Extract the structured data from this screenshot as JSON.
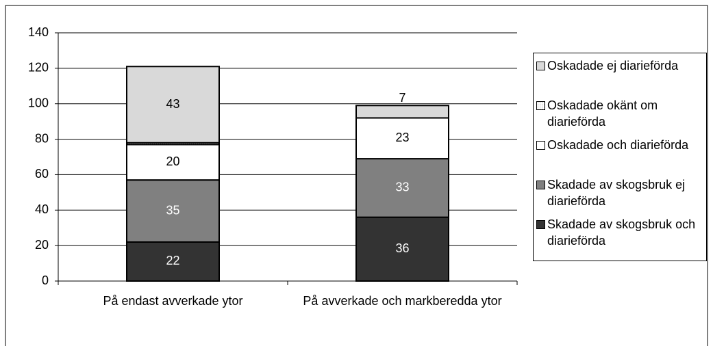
{
  "chart_data": {
    "type": "bar",
    "stacked": true,
    "categories": [
      "På endast avverkade ytor",
      "På avverkade och markberedda ytor"
    ],
    "series": [
      {
        "name": "Skadade av skogsbruk och diarieförda",
        "color": "#333333",
        "values": [
          22,
          36
        ]
      },
      {
        "name": "Skadade av skogsbruk ej diarieförda",
        "color": "#808080",
        "values": [
          35,
          33
        ]
      },
      {
        "name": "Oskadade och diarieförda",
        "color": "#ffffff",
        "values": [
          20,
          23
        ]
      },
      {
        "name": "Oskadade okänt om diarieförda",
        "color": "#e6e6e6",
        "values": [
          1,
          0
        ],
        "value_labels": [
          null,
          null
        ]
      },
      {
        "name": "Oskadade ej diarieförda",
        "color": "#d9d9d9",
        "values": [
          43,
          7
        ]
      }
    ],
    "ylim": [
      0,
      140
    ],
    "yticks": [
      0,
      20,
      40,
      60,
      80,
      100,
      120,
      140
    ],
    "grid": true,
    "legend": "right"
  }
}
